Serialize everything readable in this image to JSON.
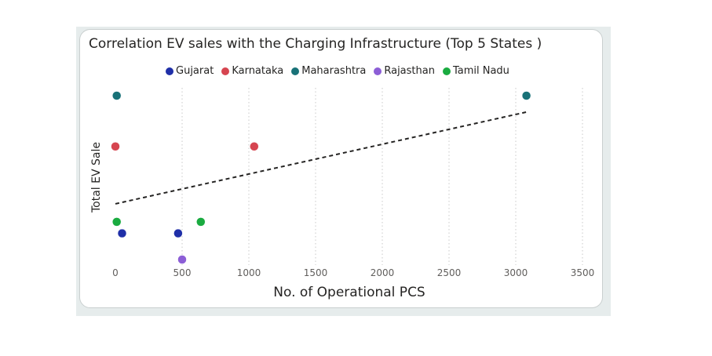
{
  "chart_data": {
    "type": "scatter",
    "title": "Correlation EV sales with the Charging Infrastructure (Top 5 States )",
    "xlabel": "No. of Operational PCS",
    "ylabel": "Total EV Sale",
    "xlim": [
      0,
      3500
    ],
    "xticks": [
      "0",
      "500",
      "1000",
      "1500",
      "2000",
      "2500",
      "3000",
      "3500"
    ],
    "grid": "vertical dotted",
    "legend_position": "top",
    "trendline": {
      "style": "dashed",
      "color": "#252423",
      "y_start": 0.34,
      "y_end": 0.9
    },
    "series": [
      {
        "name": "Gujarat",
        "color": "#1f2fa8",
        "points": [
          {
            "x": 50,
            "y": 0.16
          },
          {
            "x": 470,
            "y": 0.16
          }
        ]
      },
      {
        "name": "Karnataka",
        "color": "#d64550",
        "points": [
          {
            "x": 0,
            "y": 0.69
          },
          {
            "x": 1040,
            "y": 0.69
          }
        ]
      },
      {
        "name": "Maharashtra",
        "color": "#197278",
        "points": [
          {
            "x": 10,
            "y": 1.0
          },
          {
            "x": 3080,
            "y": 1.0
          }
        ]
      },
      {
        "name": "Rajasthan",
        "color": "#8c5ed6",
        "points": [
          {
            "x": 500,
            "y": 0.0
          }
        ]
      },
      {
        "name": "Tamil Nadu",
        "color": "#1aab40",
        "points": [
          {
            "x": 10,
            "y": 0.23
          },
          {
            "x": 640,
            "y": 0.23
          }
        ]
      }
    ]
  }
}
